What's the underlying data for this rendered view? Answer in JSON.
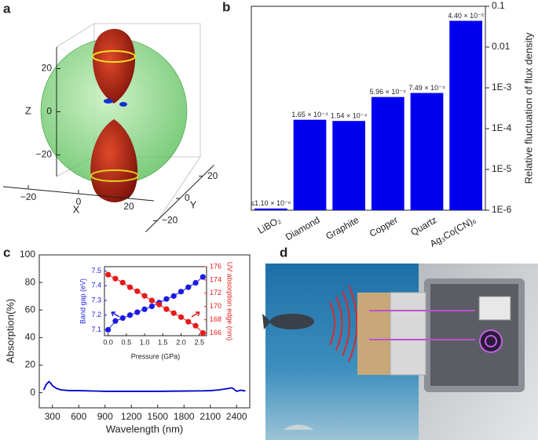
{
  "chart_data": [
    {
      "type": "surface3d",
      "panel": "a",
      "xlabel": "X",
      "ylabel": "Y",
      "zlabel": "Z",
      "xlim": [
        -30,
        30
      ],
      "ylim": [
        -30,
        30
      ],
      "zlim": [
        -30,
        30
      ],
      "xticks": [
        {
          "value": -20,
          "label": "−20"
        },
        0,
        20
      ],
      "yticks": [
        {
          "value": -20,
          "label": "−20"
        },
        0,
        20
      ],
      "zticks": [
        {
          "value": -20,
          "label": "−20"
        },
        0,
        20
      ]
    },
    {
      "type": "bar",
      "panel": "b",
      "categories": [
        "LiBO₂",
        "Diamond",
        "Graphite",
        "Copper",
        "Quartz",
        "Ag₃Co(CN)₆"
      ],
      "values": [
        1.1e-06,
        0.000165,
        0.000154,
        0.000596,
        0.000749,
        0.044
      ],
      "value_labels": [
        "≤1.10 × 10⁻⁶",
        "1.65 × 10⁻⁴",
        "1.54 × 10⁻⁴",
        "5.96 × 10⁻⁴",
        "7.49 × 10⁻⁴",
        "4.40 × 10⁻²"
      ],
      "color": "#0000ee",
      "log_scale": true,
      "y_axis_side": "right",
      "ylabel": "Relative fluctuation of flux density",
      "ylim": [
        1e-06,
        0.1
      ],
      "yticks": [
        {
          "value": 1e-06,
          "label": "1E-6"
        },
        {
          "value": 1e-05,
          "label": "1E-5"
        },
        {
          "value": 0.0001,
          "label": "1E-4"
        },
        {
          "value": 0.001,
          "label": "1E-3"
        },
        0.01,
        0.1
      ]
    },
    {
      "type": "line",
      "panel": "c",
      "xlabel": "Wavelength (nm)",
      "ylabel": "Absorption(%)",
      "x": [
        200,
        230,
        260,
        280,
        300,
        350,
        400,
        500,
        600,
        900,
        1200,
        1500,
        1800,
        2000,
        2100,
        2200,
        2300,
        2350,
        2400,
        2450,
        2500
      ],
      "values": [
        2,
        6,
        8,
        7,
        5,
        3,
        2,
        1.5,
        1.5,
        1,
        1,
        1,
        1.2,
        1.3,
        1.5,
        2,
        3,
        3.5,
        1,
        1.8,
        1.2
      ],
      "color": "#0000cc",
      "xlim": [
        150,
        2550
      ],
      "xticks": [
        300,
        600,
        900,
        1200,
        1500,
        1800,
        2100,
        2400
      ],
      "ylim": [
        -11,
        100
      ],
      "yticks": [
        0,
        20,
        40,
        60,
        80,
        100
      ],
      "inset": {
        "xlabel": "Pressure (GPa)",
        "ylabel": "Band gap (eV)",
        "y2label": "UV absorption edge (nm)",
        "x": [
          0,
          0.2,
          0.4,
          0.6,
          0.8,
          1.0,
          1.2,
          1.4,
          1.6,
          1.8,
          2.0,
          2.2,
          2.4,
          2.6
        ],
        "xlim": [
          -0.1,
          2.7
        ],
        "xticks": [
          {
            "value": 0,
            "label": "0.0"
          },
          0.5,
          {
            "value": 1,
            "label": "1.0"
          },
          1.5,
          {
            "value": 2,
            "label": "2.0"
          },
          2.5
        ],
        "ylim": [
          7.06,
          7.53
        ],
        "yticks": [
          7.1,
          7.2,
          7.3,
          7.4,
          7.5
        ],
        "y2lim": [
          165.6,
          176
        ],
        "y2ticks": [
          166,
          168,
          170,
          172,
          174,
          176
        ],
        "series": [
          {
            "color": "#1a1ae6",
            "values": [
              7.1,
              7.16,
              7.18,
              7.2,
              7.22,
              7.24,
              7.26,
              7.285,
              7.31,
              7.33,
              7.36,
              7.39,
              7.42,
              7.46
            ]
          },
          {
            "color": "#e61a1a",
            "axis": "y2",
            "values": [
              174.8,
              174.2,
              173.6,
              172.9,
              172.3,
              171.6,
              170.9,
              170.3,
              169.6,
              169.0,
              168.4,
              167.7,
              167.1,
              166.0
            ]
          }
        ]
      }
    }
  ],
  "illustration": {
    "panel": "d"
  }
}
